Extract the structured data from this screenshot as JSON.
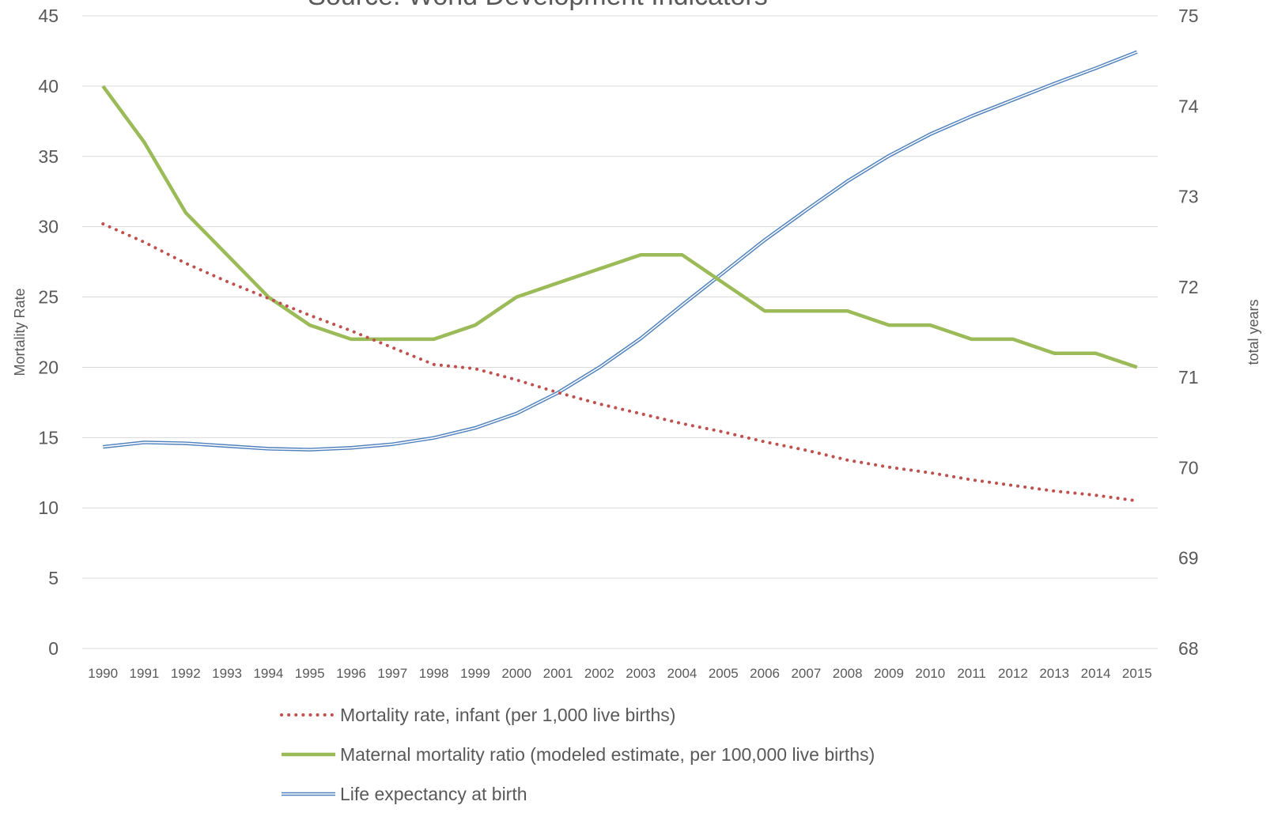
{
  "chart_data": {
    "type": "line",
    "title": "Source: World Development Indicators",
    "x": [
      "1990",
      "1991",
      "1992",
      "1993",
      "1994",
      "1995",
      "1996",
      "1997",
      "1998",
      "1999",
      "2000",
      "2001",
      "2002",
      "2003",
      "2004",
      "2005",
      "2006",
      "2007",
      "2008",
      "2009",
      "2010",
      "2011",
      "2012",
      "2013",
      "2014",
      "2015"
    ],
    "ylabel": "Mortality Rate",
    "ylim": [
      0,
      45
    ],
    "yticks": [
      0,
      5,
      10,
      15,
      20,
      25,
      30,
      35,
      40,
      45
    ],
    "y2label": "total years",
    "y2lim": [
      68,
      75
    ],
    "y2ticks": [
      68,
      69,
      70,
      71,
      72,
      73,
      74,
      75
    ],
    "grid": true,
    "legend_position": "bottom",
    "series": [
      {
        "name": "Mortality rate, infant (per 1,000 live births)",
        "axis": "left",
        "style": "dotted",
        "color": "#c0504d",
        "values": [
          30.2,
          28.9,
          27.4,
          26.1,
          24.9,
          23.7,
          22.6,
          21.4,
          20.2,
          19.9,
          19.1,
          18.2,
          17.4,
          16.7,
          16.0,
          15.4,
          14.7,
          14.1,
          13.4,
          12.9,
          12.5,
          12.0,
          11.6,
          11.2,
          10.9,
          10.5
        ]
      },
      {
        "name": "Maternal mortality ratio (modeled estimate, per 100,000 live births)",
        "axis": "left",
        "style": "solid-thick",
        "color": "#9bbb59",
        "values": [
          40,
          36,
          31,
          28,
          25,
          23,
          22,
          22,
          22,
          23,
          25,
          26,
          27,
          28,
          28,
          26,
          24,
          24,
          24,
          23,
          23,
          22,
          22,
          21,
          21,
          20
        ]
      },
      {
        "name": "Life expectancy at birth",
        "axis": "right",
        "style": "double",
        "color": "#4f81bd",
        "values": [
          70.23,
          70.28,
          70.27,
          70.24,
          70.21,
          70.2,
          70.22,
          70.26,
          70.33,
          70.44,
          70.6,
          70.83,
          71.11,
          71.43,
          71.8,
          72.16,
          72.52,
          72.85,
          73.17,
          73.45,
          73.69,
          73.89,
          74.07,
          74.25,
          74.42,
          74.6
        ]
      }
    ]
  }
}
